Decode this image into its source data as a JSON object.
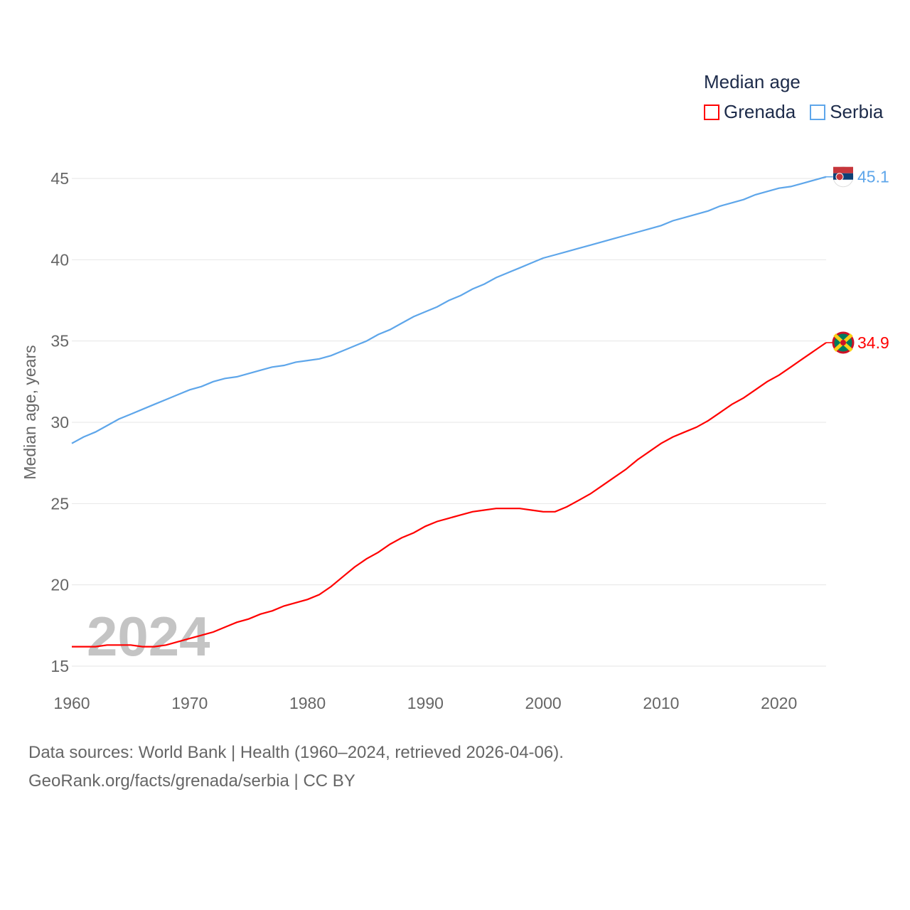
{
  "chart_data": {
    "type": "line",
    "legend_title": "Median age",
    "ylabel": "Median age, years",
    "xlabel": "",
    "xlim": [
      1960,
      2024
    ],
    "ylim": [
      15,
      45
    ],
    "yticks": [
      "15",
      "20",
      "25",
      "30",
      "35",
      "40",
      "45"
    ],
    "xticks": [
      "1960",
      "1970",
      "1980",
      "1990",
      "2000",
      "2010",
      "2020"
    ],
    "year_overlay": "2024",
    "legend_placement": "top-right",
    "series": [
      {
        "name": "Grenada",
        "color": "#ff0000",
        "end_label": "34.9",
        "values": [
          16.2,
          16.2,
          16.2,
          16.3,
          16.3,
          16.3,
          16.2,
          16.2,
          16.3,
          16.5,
          16.7,
          16.9,
          17.1,
          17.4,
          17.7,
          17.9,
          18.2,
          18.4,
          18.7,
          18.9,
          19.1,
          19.4,
          19.9,
          20.5,
          21.1,
          21.6,
          22.0,
          22.5,
          22.9,
          23.2,
          23.6,
          23.9,
          24.1,
          24.3,
          24.5,
          24.6,
          24.7,
          24.7,
          24.7,
          24.6,
          24.5,
          24.5,
          24.8,
          25.2,
          25.6,
          26.1,
          26.6,
          27.1,
          27.7,
          28.2,
          28.7,
          29.1,
          29.4,
          29.7,
          30.1,
          30.6,
          31.1,
          31.5,
          32.0,
          32.5,
          32.9,
          33.4,
          33.9,
          34.4,
          34.9
        ]
      },
      {
        "name": "Serbia",
        "color": "#5ea6ea",
        "end_label": "45.1",
        "values": [
          28.7,
          29.1,
          29.4,
          29.8,
          30.2,
          30.5,
          30.8,
          31.1,
          31.4,
          31.7,
          32.0,
          32.2,
          32.5,
          32.7,
          32.8,
          33.0,
          33.2,
          33.4,
          33.5,
          33.7,
          33.8,
          33.9,
          34.1,
          34.4,
          34.7,
          35.0,
          35.4,
          35.7,
          36.1,
          36.5,
          36.8,
          37.1,
          37.5,
          37.8,
          38.2,
          38.5,
          38.9,
          39.2,
          39.5,
          39.8,
          40.1,
          40.3,
          40.5,
          40.7,
          40.9,
          41.1,
          41.3,
          41.5,
          41.7,
          41.9,
          42.1,
          42.4,
          42.6,
          42.8,
          43.0,
          43.3,
          43.5,
          43.7,
          44.0,
          44.2,
          44.4,
          44.5,
          44.7,
          44.9,
          45.1
        ]
      }
    ]
  },
  "footer": {
    "line1": "Data sources: World Bank | Health (1960–2024, retrieved 2026-04-06).",
    "line2": "GeoRank.org/facts/grenada/serbia | CC BY"
  }
}
